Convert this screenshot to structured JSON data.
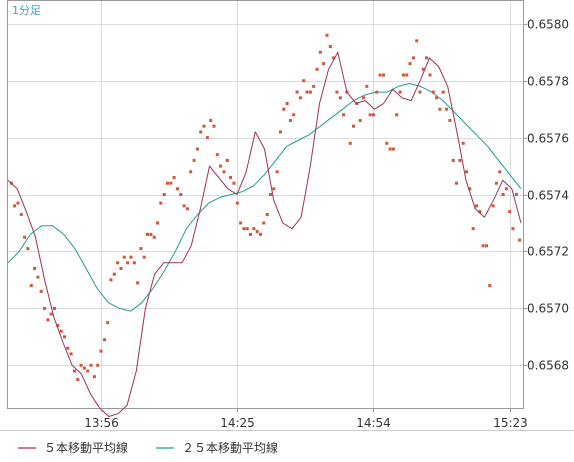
{
  "chart_data": {
    "type": "line",
    "period_label": "1分足",
    "x_tick_labels": [
      "13:56",
      "14:25",
      "14:54",
      "15:23"
    ],
    "y_tick_labels": [
      "0.6568",
      "0.6570",
      "0.6572",
      "0.6574",
      "0.6576",
      "0.6578",
      "0.6580"
    ],
    "ylim": [
      0.65665,
      0.65808
    ],
    "colors": {
      "points": "#d4553a",
      "ma5": "#a0305a",
      "ma25": "#20a08a",
      "grid": "#dcdcdc",
      "axis": "#9a9a9a"
    },
    "series": [
      {
        "name": "５本移動平均線",
        "values": [
          0.65745,
          0.65742,
          0.65734,
          0.65725,
          0.6571,
          0.65697,
          0.65688,
          0.6568,
          0.65677,
          0.6567,
          0.65665,
          0.65662,
          0.65663,
          0.65666,
          0.65678,
          0.657,
          0.65712,
          0.65716,
          0.65716,
          0.65716,
          0.65722,
          0.65735,
          0.6575,
          0.65746,
          0.65742,
          0.6574,
          0.65748,
          0.65762,
          0.65756,
          0.65738,
          0.6573,
          0.65728,
          0.65732,
          0.6575,
          0.65772,
          0.65784,
          0.6579,
          0.65776,
          0.65772,
          0.65773,
          0.6577,
          0.65772,
          0.65777,
          0.65774,
          0.65773,
          0.6578,
          0.65788,
          0.65785,
          0.65778,
          0.65762,
          0.65745,
          0.65735,
          0.65732,
          0.65738,
          0.65745,
          0.65742,
          0.6573
        ]
      },
      {
        "name": "２５本移動平均線",
        "values": [
          0.65716,
          0.6572,
          0.65726,
          0.65729,
          0.65729,
          0.65726,
          0.65721,
          0.65714,
          0.65707,
          0.65702,
          0.657,
          0.65699,
          0.65702,
          0.65707,
          0.65713,
          0.6572,
          0.65728,
          0.65733,
          0.65737,
          0.65739,
          0.6574,
          0.65741,
          0.65743,
          0.65747,
          0.65752,
          0.65757,
          0.65759,
          0.65761,
          0.65764,
          0.65767,
          0.6577,
          0.65773,
          0.65775,
          0.65776,
          0.65776,
          0.65778,
          0.65779,
          0.65778,
          0.65776,
          0.65773,
          0.65769,
          0.65765,
          0.65761,
          0.65757,
          0.65752,
          0.65747,
          0.65742
        ]
      }
    ],
    "points": [
      [
        1,
        0.65744
      ],
      [
        2,
        0.65736
      ],
      [
        3,
        0.65737
      ],
      [
        4,
        0.65733
      ],
      [
        5,
        0.65725
      ],
      [
        6,
        0.65721
      ],
      [
        7,
        0.65708
      ],
      [
        8,
        0.65714
      ],
      [
        9,
        0.65711
      ],
      [
        10,
        0.65706
      ],
      [
        11,
        0.657
      ],
      [
        12,
        0.65696
      ],
      [
        13,
        0.65698
      ],
      [
        14,
        0.657
      ],
      [
        15,
        0.65694
      ],
      [
        16,
        0.65692
      ],
      [
        17,
        0.6569
      ],
      [
        18,
        0.65686
      ],
      [
        19,
        0.65684
      ],
      [
        20,
        0.65678
      ],
      [
        21,
        0.65675
      ],
      [
        22,
        0.6568
      ],
      [
        23,
        0.65679
      ],
      [
        24,
        0.65678
      ],
      [
        25,
        0.6568
      ],
      [
        26,
        0.65676
      ],
      [
        27,
        0.6568
      ],
      [
        28,
        0.65685
      ],
      [
        29,
        0.65689
      ],
      [
        30,
        0.65695
      ],
      [
        31,
        0.6571
      ],
      [
        32,
        0.65712
      ],
      [
        33,
        0.65716
      ],
      [
        34,
        0.65714
      ],
      [
        35,
        0.65718
      ],
      [
        36,
        0.65716
      ],
      [
        37,
        0.65718
      ],
      [
        38,
        0.65716
      ],
      [
        39,
        0.65709
      ],
      [
        40,
        0.65721
      ],
      [
        41,
        0.65718
      ],
      [
        42,
        0.65726
      ],
      [
        43,
        0.65726
      ],
      [
        44,
        0.65725
      ],
      [
        45,
        0.6573
      ],
      [
        46,
        0.65737
      ],
      [
        47,
        0.6574
      ],
      [
        48,
        0.65744
      ],
      [
        49,
        0.65744
      ],
      [
        50,
        0.65746
      ],
      [
        51,
        0.65742
      ],
      [
        52,
        0.6574
      ],
      [
        53,
        0.65736
      ],
      [
        54,
        0.65735
      ],
      [
        55,
        0.65748
      ],
      [
        56,
        0.65752
      ],
      [
        57,
        0.65756
      ],
      [
        58,
        0.65762
      ],
      [
        59,
        0.65764
      ],
      [
        60,
        0.6576
      ],
      [
        61,
        0.65766
      ],
      [
        62,
        0.65764
      ],
      [
        63,
        0.65754
      ],
      [
        64,
        0.6575
      ],
      [
        65,
        0.65748
      ],
      [
        66,
        0.65752
      ],
      [
        67,
        0.65746
      ],
      [
        68,
        0.65744
      ],
      [
        69,
        0.65737
      ],
      [
        70,
        0.6573
      ],
      [
        71,
        0.65728
      ],
      [
        72,
        0.65728
      ],
      [
        73,
        0.65726
      ],
      [
        74,
        0.65728
      ],
      [
        75,
        0.65727
      ],
      [
        76,
        0.65726
      ],
      [
        77,
        0.6573
      ],
      [
        78,
        0.65733
      ],
      [
        79,
        0.6574
      ],
      [
        80,
        0.65742
      ],
      [
        81,
        0.65748
      ],
      [
        82,
        0.65762
      ],
      [
        83,
        0.6577
      ],
      [
        84,
        0.65772
      ],
      [
        85,
        0.65766
      ],
      [
        86,
        0.65768
      ],
      [
        87,
        0.65776
      ],
      [
        88,
        0.65774
      ],
      [
        89,
        0.6578
      ],
      [
        90,
        0.65776
      ],
      [
        91,
        0.65776
      ],
      [
        92,
        0.65778
      ],
      [
        93,
        0.65784
      ],
      [
        94,
        0.6579
      ],
      [
        95,
        0.65786
      ],
      [
        96,
        0.65796
      ],
      [
        97,
        0.65792
      ],
      [
        98,
        0.65788
      ],
      [
        99,
        0.65776
      ],
      [
        100,
        0.65774
      ],
      [
        101,
        0.65768
      ],
      [
        102,
        0.65776
      ],
      [
        103,
        0.65758
      ],
      [
        104,
        0.65764
      ],
      [
        105,
        0.65772
      ],
      [
        106,
        0.65766
      ],
      [
        107,
        0.65774
      ],
      [
        108,
        0.65778
      ],
      [
        109,
        0.65768
      ],
      [
        110,
        0.65768
      ],
      [
        111,
        0.65776
      ],
      [
        112,
        0.65782
      ],
      [
        113,
        0.65782
      ],
      [
        114,
        0.65758
      ],
      [
        115,
        0.65756
      ],
      [
        116,
        0.65756
      ],
      [
        117,
        0.65768
      ],
      [
        118,
        0.65776
      ],
      [
        119,
        0.65782
      ],
      [
        120,
        0.65782
      ],
      [
        121,
        0.65786
      ],
      [
        122,
        0.65788
      ],
      [
        123,
        0.65794
      ],
      [
        124,
        0.65776
      ],
      [
        125,
        0.65784
      ],
      [
        126,
        0.65788
      ],
      [
        127,
        0.65782
      ],
      [
        128,
        0.65776
      ],
      [
        129,
        0.65774
      ],
      [
        130,
        0.6577
      ],
      [
        131,
        0.65776
      ],
      [
        132,
        0.6577
      ],
      [
        133,
        0.65766
      ],
      [
        134,
        0.65752
      ],
      [
        135,
        0.65744
      ],
      [
        136,
        0.65752
      ],
      [
        137,
        0.65758
      ],
      [
        138,
        0.65748
      ],
      [
        139,
        0.65742
      ],
      [
        140,
        0.65728
      ],
      [
        141,
        0.65736
      ],
      [
        142,
        0.65734
      ],
      [
        143,
        0.65722
      ],
      [
        144,
        0.65722
      ],
      [
        145,
        0.65708
      ],
      [
        146,
        0.65736
      ],
      [
        147,
        0.65744
      ],
      [
        148,
        0.65748
      ],
      [
        149,
        0.6574
      ],
      [
        150,
        0.65742
      ],
      [
        151,
        0.65734
      ],
      [
        152,
        0.65728
      ],
      [
        153,
        0.6574
      ],
      [
        154,
        0.65724
      ]
    ]
  }
}
